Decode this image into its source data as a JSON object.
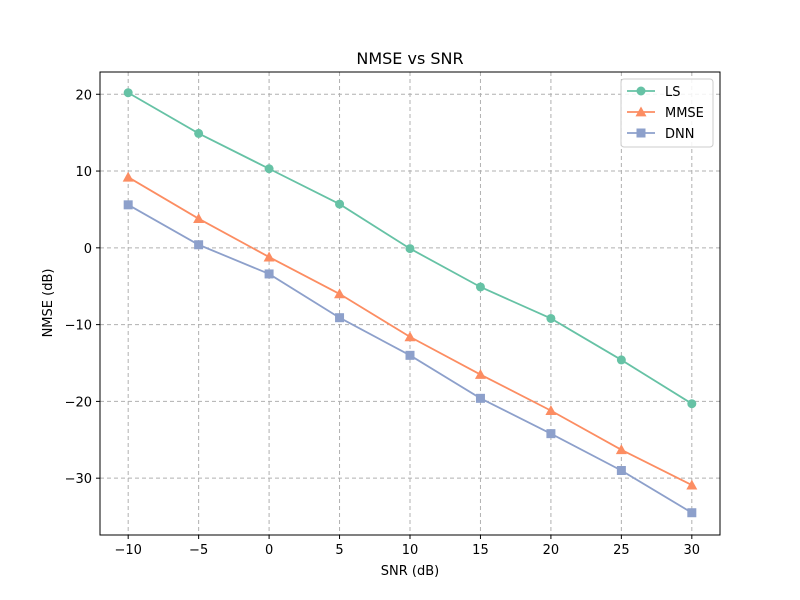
{
  "chart_data": {
    "type": "line",
    "title": "NMSE vs SNR",
    "xlabel": "SNR (dB)",
    "ylabel": "NMSE (dB)",
    "x": [
      -10,
      -5,
      0,
      5,
      10,
      15,
      20,
      25,
      30
    ],
    "xlim": [
      -12,
      32
    ],
    "ylim": [
      -37.4,
      22.9
    ],
    "xticks": [
      -10,
      -5,
      0,
      5,
      10,
      15,
      20,
      25,
      30
    ],
    "xtick_labels": [
      "−10",
      "−5",
      "0",
      "5",
      "10",
      "15",
      "20",
      "25",
      "30"
    ],
    "yticks": [
      -30,
      -20,
      -10,
      0,
      10,
      20
    ],
    "ytick_labels": [
      "−30",
      "−20",
      "−10",
      "0",
      "10",
      "20"
    ],
    "grid": true,
    "legend_position": "top-right",
    "series": [
      {
        "name": "LS",
        "marker": "circle",
        "color": "#66c2a5",
        "values": [
          20.2,
          14.9,
          10.3,
          5.7,
          -0.1,
          -5.1,
          -9.2,
          -14.6,
          -20.3
        ]
      },
      {
        "name": "MMSE",
        "marker": "triangle",
        "color": "#fc8d62",
        "values": [
          9.2,
          3.8,
          -1.2,
          -6.0,
          -11.6,
          -16.5,
          -21.2,
          -26.3,
          -30.9
        ]
      },
      {
        "name": "DNN",
        "marker": "square",
        "color": "#8da0cb",
        "values": [
          5.6,
          0.4,
          -3.4,
          -9.1,
          -14.0,
          -19.6,
          -24.2,
          -29.0,
          -34.5
        ]
      }
    ]
  }
}
